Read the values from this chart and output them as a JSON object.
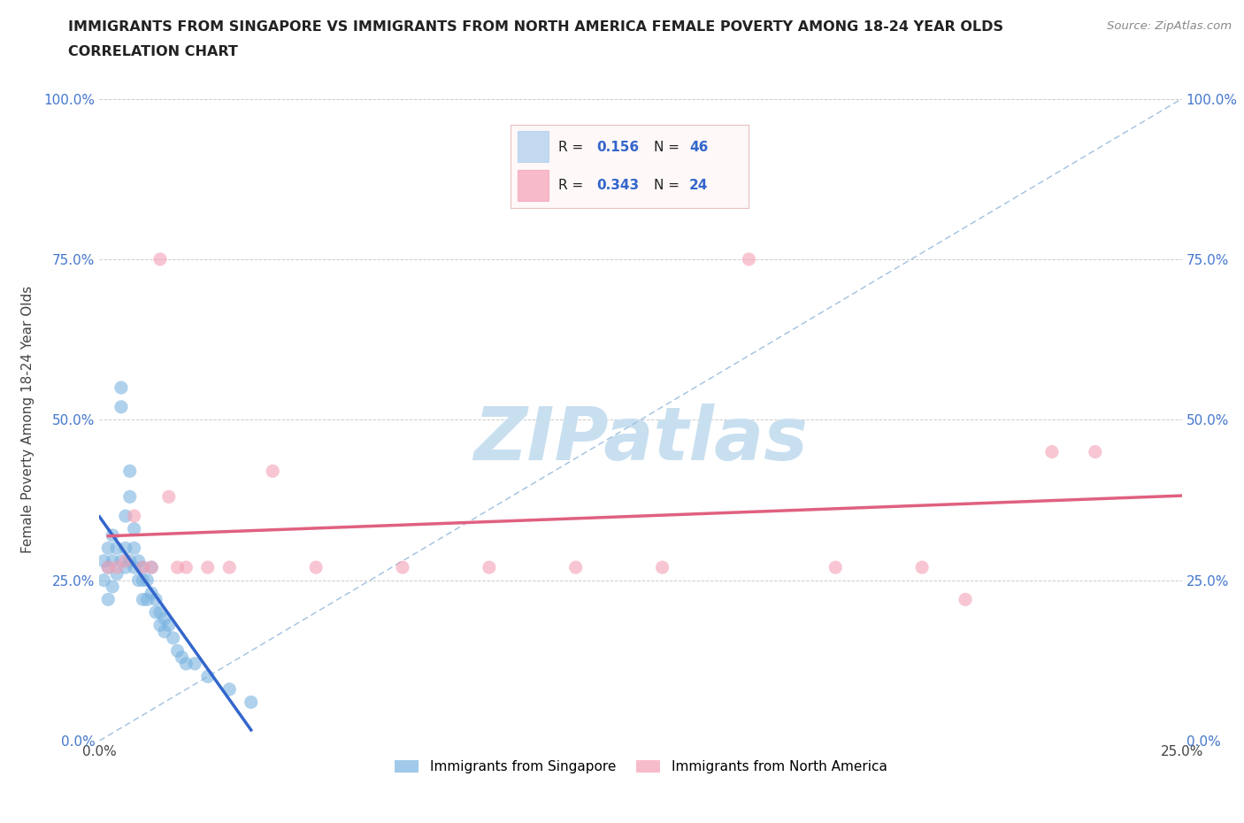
{
  "title_line1": "IMMIGRANTS FROM SINGAPORE VS IMMIGRANTS FROM NORTH AMERICA FEMALE POVERTY AMONG 18-24 YEAR OLDS",
  "title_line2": "CORRELATION CHART",
  "source_text": "Source: ZipAtlas.com",
  "ylabel": "Female Poverty Among 18-24 Year Olds",
  "xlim": [
    0.0,
    0.25
  ],
  "ylim": [
    0.0,
    1.0
  ],
  "xticks": [
    0.0,
    0.05,
    0.1,
    0.15,
    0.2,
    0.25
  ],
  "yticks": [
    0.0,
    0.25,
    0.5,
    0.75,
    1.0
  ],
  "singapore_R": 0.156,
  "singapore_N": 46,
  "north_america_R": 0.343,
  "north_america_N": 24,
  "singapore_color": "#7ab3e0",
  "north_america_color": "#f4a0b5",
  "singapore_line_color": "#3366cc",
  "north_america_line_color": "#e06080",
  "ref_line_color": "#a0c0e0",
  "watermark_color": "#c8dff0",
  "singapore_x": [
    0.001,
    0.001,
    0.002,
    0.002,
    0.002,
    0.003,
    0.003,
    0.003,
    0.004,
    0.004,
    0.005,
    0.005,
    0.005,
    0.006,
    0.006,
    0.006,
    0.007,
    0.007,
    0.007,
    0.008,
    0.008,
    0.008,
    0.009,
    0.009,
    0.01,
    0.01,
    0.01,
    0.011,
    0.011,
    0.012,
    0.012,
    0.013,
    0.013,
    0.014,
    0.014,
    0.015,
    0.015,
    0.016,
    0.017,
    0.018,
    0.019,
    0.02,
    0.022,
    0.025,
    0.03,
    0.035
  ],
  "singapore_y": [
    0.28,
    0.25,
    0.3,
    0.27,
    0.22,
    0.32,
    0.28,
    0.24,
    0.3,
    0.26,
    0.55,
    0.52,
    0.28,
    0.35,
    0.3,
    0.27,
    0.42,
    0.38,
    0.28,
    0.33,
    0.3,
    0.27,
    0.28,
    0.25,
    0.27,
    0.25,
    0.22,
    0.25,
    0.22,
    0.27,
    0.23,
    0.22,
    0.2,
    0.2,
    0.18,
    0.19,
    0.17,
    0.18,
    0.16,
    0.14,
    0.13,
    0.12,
    0.12,
    0.1,
    0.08,
    0.06
  ],
  "north_america_x": [
    0.002,
    0.004,
    0.006,
    0.008,
    0.01,
    0.012,
    0.014,
    0.016,
    0.018,
    0.02,
    0.025,
    0.03,
    0.04,
    0.05,
    0.07,
    0.09,
    0.11,
    0.13,
    0.15,
    0.17,
    0.19,
    0.2,
    0.22,
    0.23
  ],
  "north_america_y": [
    0.27,
    0.27,
    0.28,
    0.35,
    0.27,
    0.27,
    0.75,
    0.38,
    0.27,
    0.27,
    0.27,
    0.27,
    0.42,
    0.27,
    0.27,
    0.27,
    0.27,
    0.27,
    0.75,
    0.27,
    0.27,
    0.22,
    0.45,
    0.45
  ]
}
